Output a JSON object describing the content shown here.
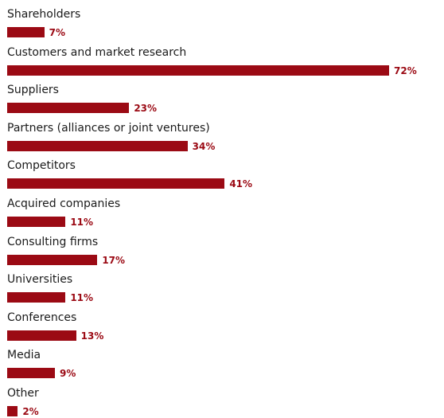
{
  "chart_data": {
    "type": "bar",
    "orientation": "horizontal",
    "categories": [
      "Shareholders",
      "Customers and market research",
      "Suppliers",
      "Partners (alliances or joint ventures)",
      "Competitors",
      "Acquired companies",
      "Consulting firms",
      "Universities",
      "Conferences",
      "Media",
      "Other"
    ],
    "values": [
      7,
      72,
      23,
      34,
      41,
      11,
      17,
      11,
      13,
      9,
      2
    ],
    "value_labels": [
      "7%",
      "72%",
      "23%",
      "34%",
      "41%",
      "11%",
      "17%",
      "11%",
      "13%",
      "9%",
      "2%"
    ],
    "unit": "%",
    "title": "",
    "xlabel": "",
    "ylabel": "",
    "xlim": [
      0,
      72
    ],
    "grid": false,
    "legend": "none"
  },
  "colors": {
    "bar": "#9b0a14",
    "value_label": "#9b0a14",
    "category_label": "#1a1a1a"
  }
}
